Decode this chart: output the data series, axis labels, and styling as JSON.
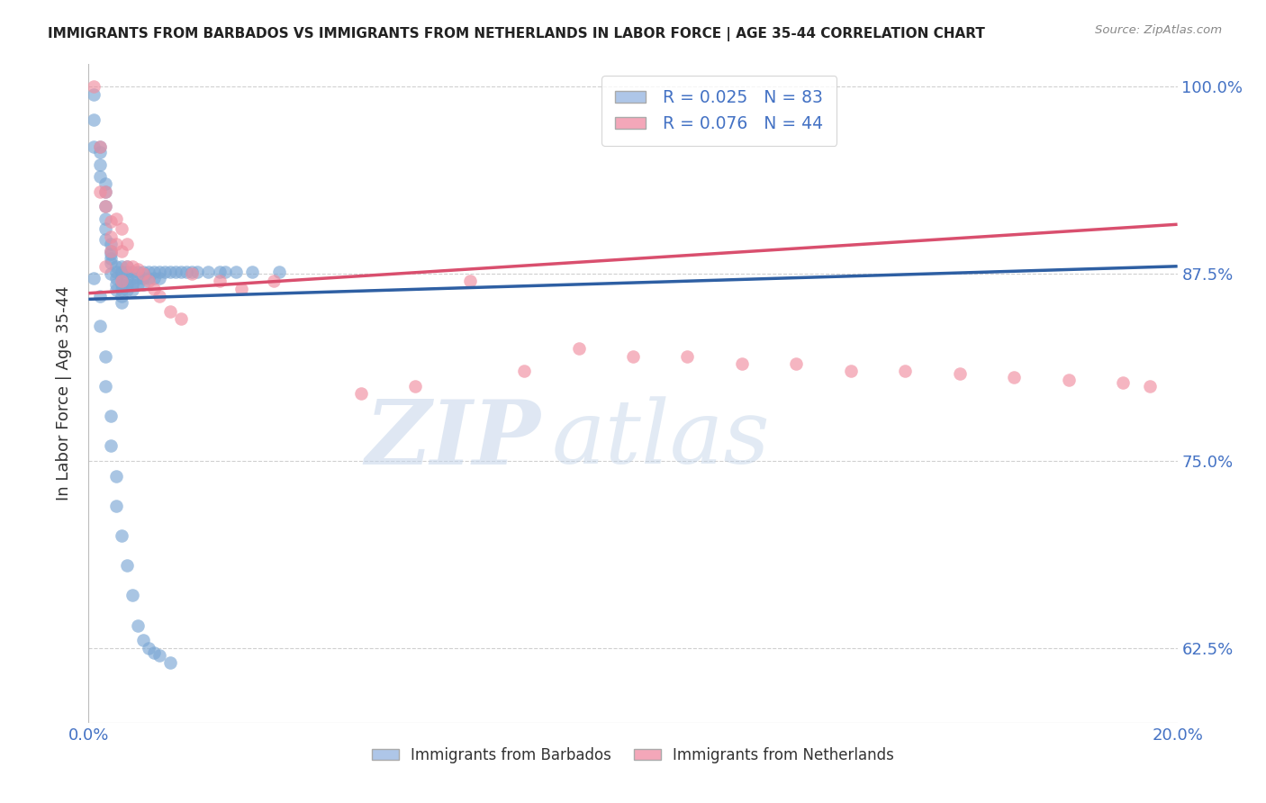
{
  "title": "IMMIGRANTS FROM BARBADOS VS IMMIGRANTS FROM NETHERLANDS IN LABOR FORCE | AGE 35-44 CORRELATION CHART",
  "source": "Source: ZipAtlas.com",
  "ylabel": "In Labor Force | Age 35-44",
  "xlim": [
    0.0,
    0.2
  ],
  "ylim": [
    0.575,
    1.015
  ],
  "yticks": [
    0.625,
    0.75,
    0.875,
    1.0
  ],
  "ytick_labels": [
    "62.5%",
    "75.0%",
    "87.5%",
    "100.0%"
  ],
  "xticks": [
    0.0,
    0.025,
    0.05,
    0.075,
    0.1,
    0.125,
    0.15,
    0.175,
    0.2
  ],
  "xtick_labels": [
    "0.0%",
    "",
    "",
    "",
    "",
    "",
    "",
    "",
    "20.0%"
  ],
  "legend_R_blue": "R = 0.025",
  "legend_N_blue": "N = 83",
  "legend_R_pink": "R = 0.076",
  "legend_N_pink": "N = 44",
  "blue_color": "#7BA7D4",
  "pink_color": "#F08EA0",
  "blue_line_color": "#2E5FA3",
  "pink_line_color": "#D94F6E",
  "blue_scatter_x": [
    0.001,
    0.001,
    0.001,
    0.002,
    0.002,
    0.002,
    0.002,
    0.003,
    0.003,
    0.003,
    0.003,
    0.003,
    0.003,
    0.004,
    0.004,
    0.004,
    0.004,
    0.004,
    0.004,
    0.005,
    0.005,
    0.005,
    0.005,
    0.005,
    0.006,
    0.006,
    0.006,
    0.006,
    0.006,
    0.006,
    0.006,
    0.007,
    0.007,
    0.007,
    0.007,
    0.007,
    0.008,
    0.008,
    0.008,
    0.008,
    0.009,
    0.009,
    0.009,
    0.01,
    0.01,
    0.01,
    0.011,
    0.011,
    0.012,
    0.012,
    0.013,
    0.013,
    0.014,
    0.015,
    0.016,
    0.017,
    0.018,
    0.019,
    0.02,
    0.022,
    0.024,
    0.025,
    0.027,
    0.03,
    0.035,
    0.001,
    0.002,
    0.002,
    0.003,
    0.003,
    0.004,
    0.004,
    0.005,
    0.005,
    0.006,
    0.007,
    0.008,
    0.009,
    0.01,
    0.011,
    0.012,
    0.013,
    0.015
  ],
  "blue_scatter_y": [
    0.995,
    0.978,
    0.96,
    0.96,
    0.956,
    0.948,
    0.94,
    0.935,
    0.93,
    0.92,
    0.912,
    0.905,
    0.898,
    0.895,
    0.89,
    0.888,
    0.885,
    0.882,
    0.875,
    0.88,
    0.876,
    0.872,
    0.868,
    0.864,
    0.88,
    0.876,
    0.872,
    0.868,
    0.864,
    0.86,
    0.856,
    0.88,
    0.876,
    0.872,
    0.868,
    0.864,
    0.876,
    0.872,
    0.868,
    0.864,
    0.876,
    0.872,
    0.868,
    0.876,
    0.872,
    0.868,
    0.876,
    0.872,
    0.876,
    0.872,
    0.876,
    0.872,
    0.876,
    0.876,
    0.876,
    0.876,
    0.876,
    0.876,
    0.876,
    0.876,
    0.876,
    0.876,
    0.876,
    0.876,
    0.876,
    0.872,
    0.86,
    0.84,
    0.82,
    0.8,
    0.78,
    0.76,
    0.74,
    0.72,
    0.7,
    0.68,
    0.66,
    0.64,
    0.63,
    0.625,
    0.622,
    0.62,
    0.615
  ],
  "pink_scatter_x": [
    0.001,
    0.002,
    0.002,
    0.003,
    0.003,
    0.004,
    0.004,
    0.004,
    0.005,
    0.005,
    0.006,
    0.006,
    0.007,
    0.007,
    0.008,
    0.009,
    0.01,
    0.011,
    0.012,
    0.013,
    0.015,
    0.017,
    0.019,
    0.024,
    0.028,
    0.034,
    0.05,
    0.06,
    0.07,
    0.08,
    0.09,
    0.1,
    0.11,
    0.12,
    0.13,
    0.14,
    0.15,
    0.16,
    0.17,
    0.18,
    0.19,
    0.195,
    0.003,
    0.006
  ],
  "pink_scatter_y": [
    1.0,
    0.96,
    0.93,
    0.93,
    0.92,
    0.91,
    0.9,
    0.89,
    0.912,
    0.895,
    0.905,
    0.89,
    0.895,
    0.88,
    0.88,
    0.878,
    0.875,
    0.87,
    0.865,
    0.86,
    0.85,
    0.845,
    0.875,
    0.87,
    0.865,
    0.87,
    0.795,
    0.8,
    0.87,
    0.81,
    0.825,
    0.82,
    0.82,
    0.815,
    0.815,
    0.81,
    0.81,
    0.808,
    0.806,
    0.804,
    0.802,
    0.8,
    0.88,
    0.87
  ],
  "blue_line_y0": 0.858,
  "blue_line_y1": 0.88,
  "pink_line_y0": 0.862,
  "pink_line_y1": 0.908,
  "watermark_text": "ZIPatlas",
  "background_color": "#FFFFFF",
  "grid_color": "#D0D0D0",
  "axis_color": "#4472C4",
  "title_color": "#222222",
  "legend_box_color_blue": "#AEC6E8",
  "legend_box_color_pink": "#F4A7B9"
}
